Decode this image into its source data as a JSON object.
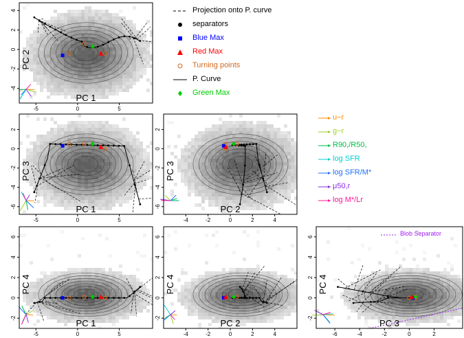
{
  "chart_data": {
    "type": "scatter",
    "panels": [
      {
        "id": "pc1_pc2",
        "xlabel": "PC 1",
        "ylabel": "PC 2",
        "xlim": [
          -7,
          9
        ],
        "ylim": [
          -5.5,
          4.8
        ],
        "xticks": [
          "-5",
          "0",
          "5"
        ],
        "yticks": [
          "-4",
          "-2",
          "0",
          "2",
          "4"
        ]
      },
      {
        "id": "pc1_pc3",
        "xlabel": "PC 1",
        "ylabel": "PC 3",
        "xlim": [
          -7,
          9
        ],
        "ylim": [
          -6.8,
          3.6
        ],
        "xticks": [
          "-5",
          "0",
          "5"
        ],
        "yticks": [
          "-6",
          "-4",
          "-2",
          "0",
          "2"
        ]
      },
      {
        "id": "pc2_pc3",
        "xlabel": "PC 2",
        "ylabel": "PC 3",
        "xlim": [
          -6,
          6
        ],
        "ylim": [
          -6.8,
          3.6
        ],
        "xticks": [
          "-4",
          "-2",
          "0",
          "2",
          "4"
        ],
        "yticks": [
          "-6",
          "-4",
          "-2",
          "0",
          "2"
        ]
      },
      {
        "id": "pc1_pc4",
        "xlabel": "PC 1",
        "ylabel": "PC 4",
        "xlim": [
          -7,
          9
        ],
        "ylim": [
          -3,
          7
        ],
        "xticks": [
          "-5",
          "0",
          "5"
        ],
        "yticks": [
          "-2",
          "0",
          "2",
          "4",
          "6"
        ]
      },
      {
        "id": "pc2_pc4",
        "xlabel": "PC 2",
        "ylabel": "PC 4",
        "xlim": [
          -6,
          6
        ],
        "ylim": [
          -3,
          7
        ],
        "xticks": [
          "-4",
          "-2",
          "0",
          "2",
          "4"
        ],
        "yticks": [
          "-2",
          "0",
          "2",
          "4",
          "6"
        ]
      },
      {
        "id": "pc3_pc4",
        "xlabel": "PC 3",
        "ylabel": "PC 4",
        "xlim": [
          -7.5,
          4.3
        ],
        "ylim": [
          -3,
          7
        ],
        "xticks": [
          "-6",
          "-4",
          "-2",
          "0",
          "2"
        ],
        "yticks": [
          "-2",
          "0",
          "2",
          "4",
          "6"
        ]
      }
    ],
    "pc1_range_curve": [
      -5.2,
      7.5
    ],
    "markers": {
      "blue_max": {
        "pc1": -1.8,
        "pc2": -0.6,
        "pc3": 0.3,
        "pc4": 0.0
      },
      "red_max": {
        "pc1": 2.8,
        "pc2": -0.4,
        "pc3": 0.2,
        "pc4": 0.1
      },
      "green_max": {
        "pc1": 1.8,
        "pc2": 0.3,
        "pc3": 0.5,
        "pc4": 0.1
      },
      "turning_points": [
        {
          "pc1": -1.0,
          "pc2": -0.4,
          "pc3": 0.5,
          "pc4": 0.0
        },
        {
          "pc1": 0.8,
          "pc2": 0.6,
          "pc3": 0.5,
          "pc4": 0.1
        },
        {
          "pc1": 3.3,
          "pc2": -0.4,
          "pc3": 0.0,
          "pc4": 0.0
        }
      ]
    },
    "blob_separator_line": {
      "pc3": [
        -3.2,
        4.3
      ],
      "pc4": [
        -3.0,
        -1.0
      ]
    }
  },
  "legend_main": {
    "projection": "Projection onto P. curve",
    "separators": "separators",
    "blue_max": "Blue Max",
    "red_max": "Red Max",
    "turning_points": "Turning points",
    "p_curve": "P. Curve",
    "green_max": "Green Max"
  },
  "legend_colors": {
    "projection": "#000000",
    "separators": "#000000",
    "blue_max": "#0000ff",
    "red_max": "#ff0000",
    "turning_points": "#d2691e",
    "p_curve": "#000000",
    "green_max": "#00cc00"
  },
  "vector_legend": [
    {
      "label": "u−r",
      "color": "#ff8c00"
    },
    {
      "label": "g−r",
      "color": "#9acd32"
    },
    {
      "label": "R90,/R50,",
      "color": "#00bb44"
    },
    {
      "label": "log SFR",
      "color": "#00ced1"
    },
    {
      "label": "log SFR/M*",
      "color": "#1e6fff"
    },
    {
      "label": "μ50,r",
      "color": "#8a2be2"
    },
    {
      "label": "log M*/Lr",
      "color": "#ff1493"
    }
  ],
  "blob_separator": {
    "label": "Blob Separator",
    "color": "#a020f0"
  }
}
